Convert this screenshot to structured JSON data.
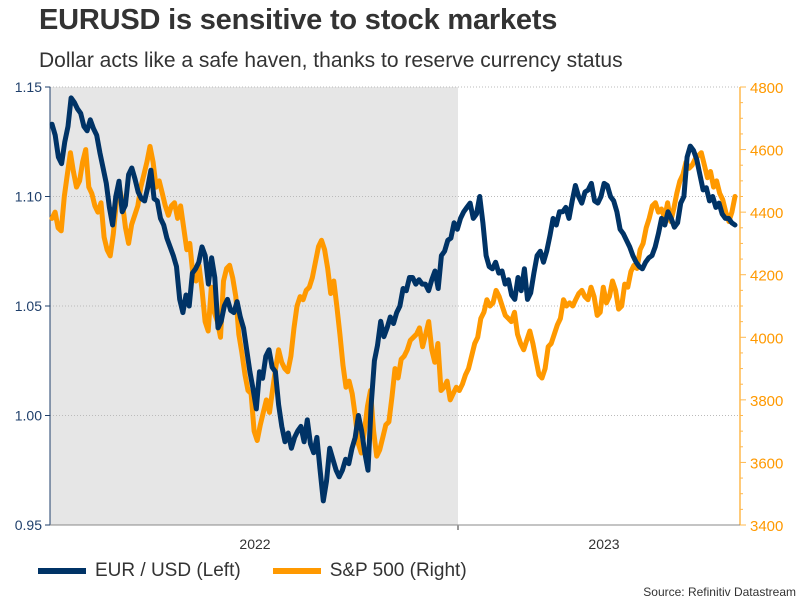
{
  "title": "EURUSD is sensitive to stock markets",
  "subtitle": "Dollar acts like a safe haven, thanks to reserve currency status",
  "source": "Source: Refinitiv Datastream",
  "colors": {
    "eurusd": "#003366",
    "sp500": "#FF9900",
    "shade": "#E6E6E6",
    "left_axis": "#1F3F6B",
    "right_axis": "#FF9900"
  },
  "chart_data": {
    "type": "line",
    "title": "EURUSD is sensitive to stock markets",
    "subtitle": "Dollar acts like a safe haven, thanks to reserve currency status",
    "x_tick_labels": [
      "2022",
      "2023"
    ],
    "x_range": [
      "2021-09",
      "2023-08"
    ],
    "shaded_period": "2022",
    "left_axis": {
      "label": "EUR / USD",
      "ticks": [
        "0.95",
        "1.00",
        "1.05",
        "1.10",
        "1.15"
      ],
      "ylim": [
        0.95,
        1.15
      ]
    },
    "right_axis": {
      "label": "S&P 500",
      "ticks": [
        "3400",
        "3600",
        "3800",
        "4000",
        "4200",
        "4400",
        "4600",
        "4800"
      ],
      "ylim": [
        3400,
        4800
      ]
    },
    "grid": "horizontal dotted",
    "legend": "bottom-left",
    "series": [
      {
        "name": "EUR / USD (Left)",
        "axis": "left",
        "values": [
          1.133,
          1.128,
          1.118,
          1.115,
          1.125,
          1.132,
          1.145,
          1.143,
          1.14,
          1.138,
          1.132,
          1.13,
          1.135,
          1.131,
          1.128,
          1.12,
          1.113,
          1.106,
          1.095,
          1.087,
          1.1,
          1.107,
          1.093,
          1.096,
          1.11,
          1.113,
          1.108,
          1.102,
          1.099,
          1.098,
          1.104,
          1.112,
          1.099,
          1.098,
          1.09,
          1.087,
          1.081,
          1.077,
          1.073,
          1.068,
          1.053,
          1.047,
          1.055,
          1.05,
          1.065,
          1.067,
          1.07,
          1.077,
          1.073,
          1.06,
          1.072,
          1.063,
          1.04,
          1.043,
          1.05,
          1.053,
          1.048,
          1.047,
          1.052,
          1.045,
          1.04,
          1.03,
          1.02,
          1.012,
          1.003,
          1.02,
          1.017,
          1.027,
          1.03,
          1.022,
          1.02,
          1.005,
          0.995,
          0.988,
          0.992,
          0.985,
          0.99,
          0.993,
          0.995,
          0.988,
          0.998,
          0.987,
          0.983,
          0.99,
          0.975,
          0.961,
          0.97,
          0.985,
          0.98,
          0.975,
          0.972,
          0.975,
          0.98,
          0.978,
          0.985,
          0.99,
          1.0,
          0.993,
          0.983,
          0.975,
          1.005,
          1.025,
          1.032,
          1.043,
          1.036,
          1.04,
          1.045,
          1.042,
          1.047,
          1.05,
          1.058,
          1.057,
          1.063,
          1.063,
          1.06,
          1.062,
          1.06,
          1.06,
          1.057,
          1.062,
          1.066,
          1.058,
          1.073,
          1.075,
          1.08,
          1.081,
          1.088,
          1.085,
          1.09,
          1.093,
          1.095,
          1.097,
          1.09,
          1.092,
          1.1,
          1.088,
          1.073,
          1.068,
          1.067,
          1.07,
          1.065,
          1.066,
          1.06,
          1.062,
          1.055,
          1.053,
          1.063,
          1.057,
          1.067,
          1.053,
          1.056,
          1.065,
          1.073,
          1.075,
          1.07,
          1.075,
          1.082,
          1.09,
          1.087,
          1.093,
          1.093,
          1.095,
          1.09,
          1.098,
          1.105,
          1.1,
          1.097,
          1.102,
          1.103,
          1.106,
          1.098,
          1.097,
          1.1,
          1.106,
          1.105,
          1.1,
          1.098,
          1.093,
          1.085,
          1.083,
          1.08,
          1.077,
          1.073,
          1.07,
          1.068,
          1.067,
          1.07,
          1.072,
          1.073,
          1.077,
          1.083,
          1.09,
          1.087,
          1.093,
          1.09,
          1.086,
          1.088,
          1.097,
          1.1,
          1.118,
          1.123,
          1.121,
          1.117,
          1.11,
          1.103,
          1.104,
          1.098,
          1.1,
          1.095,
          1.097,
          1.092,
          1.09,
          1.09,
          1.088,
          1.087
        ]
      },
      {
        "name": "S&P 500 (Right)",
        "axis": "right",
        "values": [
          4380,
          4400,
          4350,
          4340,
          4450,
          4520,
          4590,
          4530,
          4480,
          4500,
          4560,
          4600,
          4480,
          4460,
          4420,
          4400,
          4430,
          4320,
          4280,
          4260,
          4330,
          4430,
          4480,
          4430,
          4350,
          4300,
          4360,
          4390,
          4420,
          4480,
          4520,
          4560,
          4610,
          4560,
          4480,
          4500,
          4460,
          4420,
          4390,
          4420,
          4430,
          4380,
          4420,
          4350,
          4280,
          4300,
          4200,
          4180,
          4230,
          4150,
          4050,
          4020,
          4160,
          4080,
          4050,
          4000,
          4180,
          4220,
          4230,
          4190,
          4130,
          4010,
          3950,
          3880,
          3830,
          3820,
          3700,
          3670,
          3720,
          3760,
          3800,
          3760,
          3830,
          3900,
          3960,
          3920,
          3900,
          3890,
          3940,
          4030,
          4100,
          4130,
          4120,
          4150,
          4160,
          4190,
          4240,
          4290,
          4310,
          4280,
          4220,
          4140,
          4180,
          4100,
          4010,
          3910,
          3840,
          3860,
          3820,
          3750,
          3660,
          3630,
          3700,
          3780,
          3830,
          3700,
          3620,
          3640,
          3680,
          3720,
          3730,
          3810,
          3900,
          3870,
          3930,
          3940,
          3960,
          3990,
          4000,
          4010,
          4030,
          3970,
          4010,
          4050,
          3960,
          3920,
          3980,
          3830,
          3840,
          3860,
          3800,
          3820,
          3840,
          3830,
          3850,
          3880,
          3900,
          3940,
          3980,
          4000,
          4060,
          4080,
          4120,
          4100,
          4110,
          4150,
          4130,
          4100,
          4070,
          4060,
          4050,
          4080,
          4010,
          3980,
          3960,
          3990,
          4020,
          3980,
          3930,
          3880,
          3870,
          3900,
          3970,
          3980,
          4010,
          4040,
          4060,
          4120,
          4100,
          4110,
          4100,
          4120,
          4140,
          4150,
          4130,
          4120,
          4160,
          4130,
          4070,
          4080,
          4160,
          4110,
          4130,
          4180,
          4150,
          4090,
          4100,
          4170,
          4160,
          4210,
          4230,
          4220,
          4280,
          4300,
          4350,
          4380,
          4420,
          4430,
          4400,
          4410,
          4380,
          4430,
          4370,
          4410,
          4460,
          4500,
          4520,
          4560,
          4540,
          4550,
          4570,
          4580,
          4590,
          4550,
          4510,
          4530,
          4480,
          4500,
          4460,
          4440,
          4400,
          4370,
          4400,
          4450
        ]
      }
    ]
  },
  "legend": [
    {
      "label": "EUR / USD (Left)",
      "color": "#003366"
    },
    {
      "label": "S&P 500 (Right)",
      "color": "#FF9900"
    }
  ]
}
